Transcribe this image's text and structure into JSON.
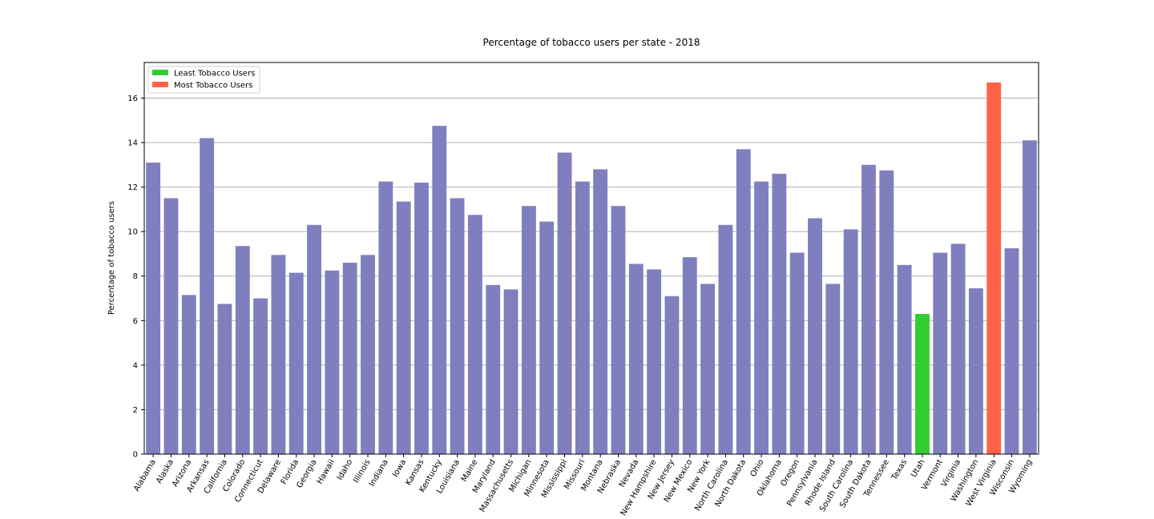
{
  "chart_data": {
    "type": "bar",
    "title": "Percentage of tobacco users per state - 2018",
    "xlabel": "",
    "ylabel": "Percentage of tobacco users",
    "ylim": [
      0,
      17.6
    ],
    "yticks": [
      0,
      2,
      4,
      6,
      8,
      10,
      12,
      14,
      16
    ],
    "grid": "horizontal",
    "legend_position": "top-left",
    "colors": {
      "default": "#7f7fbf",
      "least": "#32cd32",
      "most": "#ff6347"
    },
    "legend": [
      {
        "label": "Least Tobacco Users",
        "color": "#32cd32"
      },
      {
        "label": "Most Tobacco Users",
        "color": "#ff6347"
      }
    ],
    "categories": [
      "Alabama",
      "Alaska",
      "Arizona",
      "Arkansas",
      "California",
      "Colorado",
      "Connecticut",
      "Delaware",
      "Florida",
      "Georgia",
      "Hawaii",
      "Idaho",
      "Illinois",
      "Indiana",
      "Iowa",
      "Kansas",
      "Kentucky",
      "Louisiana",
      "Maine",
      "Maryland",
      "Massachusetts",
      "Michigan",
      "Minnesota",
      "Mississippi",
      "Missouri",
      "Montana",
      "Nebraska",
      "Nevada",
      "New Hampshire",
      "New Jersey",
      "New Mexico",
      "New York",
      "North Carolina",
      "North Dakota",
      "Ohio",
      "Oklahoma",
      "Oregon",
      "Pennsylvania",
      "Rhode Island",
      "South Carolina",
      "South Dakota",
      "Tennessee",
      "Texas",
      "Utah",
      "Vermont",
      "Virginia",
      "Washington",
      "West Virginia",
      "Wisconsin",
      "Wyoming"
    ],
    "values": [
      13.1,
      11.5,
      7.15,
      14.2,
      6.75,
      9.35,
      7.0,
      8.95,
      8.15,
      10.3,
      8.25,
      8.6,
      8.95,
      12.25,
      11.35,
      12.2,
      14.75,
      11.5,
      10.75,
      7.6,
      7.4,
      11.15,
      10.45,
      13.55,
      12.25,
      12.8,
      11.15,
      8.55,
      8.3,
      7.1,
      8.85,
      7.65,
      10.3,
      13.7,
      12.25,
      12.6,
      9.05,
      10.6,
      7.65,
      10.1,
      13.0,
      12.75,
      8.5,
      6.3,
      9.05,
      9.45,
      7.45,
      16.7,
      9.25,
      14.1
    ],
    "highlight": {
      "least": "Utah",
      "most": "West Virginia"
    }
  }
}
